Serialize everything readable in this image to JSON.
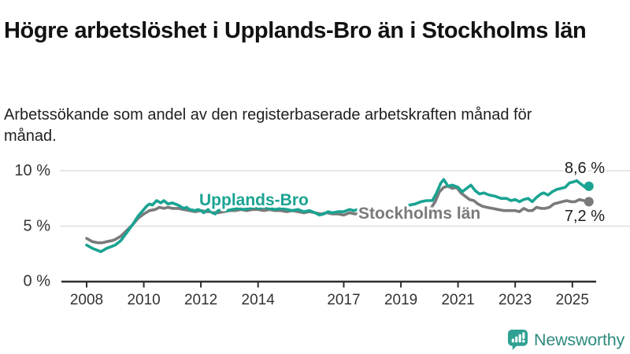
{
  "header": {
    "title": "Högre arbetslöshet i Upplands-Bro än i Stockholms län",
    "subtitle": "Arbetssökande som andel av den registerbaserade arbetskraften månad för månad."
  },
  "footer": {
    "brand": "Newsworthy"
  },
  "colors": {
    "upplands_bro": "#1aa392",
    "stockholms_lan": "#7a7a7a",
    "grid": "#dedede",
    "axis": "#2e2e2e",
    "end_label_text": "#1c1c1c"
  },
  "chart_data": {
    "type": "line",
    "x_range": [
      2008,
      2025.58
    ],
    "ylim": [
      0,
      10
    ],
    "y_unit": "%",
    "grid": "horizontal-only",
    "y_ticks": [
      {
        "label": "10 %",
        "value": 10
      },
      {
        "label": "5 %",
        "value": 5
      },
      {
        "label": "0 %",
        "value": 0
      }
    ],
    "x_ticks": [
      {
        "label": "2008",
        "value": 2008
      },
      {
        "label": "2010",
        "value": 2010
      },
      {
        "label": "2012",
        "value": 2012
      },
      {
        "label": "2014",
        "value": 2014
      },
      {
        "label": "2017",
        "value": 2017
      },
      {
        "label": "2019",
        "value": 2019
      },
      {
        "label": "2021",
        "value": 2021
      },
      {
        "label": "2023",
        "value": 2023
      },
      {
        "label": "2025",
        "value": 2025
      }
    ],
    "series": [
      {
        "name": "Upplands-Bro",
        "color": "#1aa392",
        "end_label": "8,6 %",
        "end_value": 8.6,
        "points": [
          [
            2008.0,
            3.3
          ],
          [
            2008.2,
            3.0
          ],
          [
            2008.4,
            2.8
          ],
          [
            2008.5,
            2.7
          ],
          [
            2008.7,
            3.0
          ],
          [
            2008.9,
            3.2
          ],
          [
            2009.0,
            3.3
          ],
          [
            2009.2,
            3.7
          ],
          [
            2009.4,
            4.4
          ],
          [
            2009.6,
            5.1
          ],
          [
            2009.8,
            5.9
          ],
          [
            2010.0,
            6.5
          ],
          [
            2010.1,
            6.8
          ],
          [
            2010.2,
            7.0
          ],
          [
            2010.3,
            6.9
          ],
          [
            2010.45,
            7.3
          ],
          [
            2010.6,
            7.1
          ],
          [
            2010.7,
            7.3
          ],
          [
            2010.85,
            7.0
          ],
          [
            2011.0,
            7.1
          ],
          [
            2011.2,
            6.9
          ],
          [
            2011.4,
            6.6
          ],
          [
            2011.5,
            6.7
          ],
          [
            2011.6,
            6.5
          ],
          [
            2011.8,
            6.4
          ],
          [
            2011.9,
            6.5
          ],
          [
            2012.0,
            6.4
          ],
          [
            2012.1,
            6.2
          ],
          [
            2012.25,
            6.5
          ],
          [
            2012.4,
            6.2
          ],
          [
            2012.5,
            6.1
          ],
          [
            2012.6,
            6.4
          ],
          [
            2012.75,
            6.5
          ],
          [
            2012.9,
            6.4
          ],
          [
            2013.1,
            6.5
          ],
          [
            2013.3,
            6.6
          ],
          [
            2013.5,
            6.5
          ],
          [
            2013.7,
            6.6
          ],
          [
            2013.9,
            6.7
          ],
          [
            2014.0,
            6.6
          ],
          [
            2014.2,
            6.7
          ],
          [
            2014.4,
            6.6
          ],
          [
            2014.6,
            6.5
          ],
          [
            2014.8,
            6.6
          ],
          [
            2015.0,
            6.5
          ],
          [
            2015.2,
            6.4
          ],
          [
            2015.4,
            6.5
          ],
          [
            2015.6,
            6.3
          ],
          [
            2015.8,
            6.4
          ],
          [
            2016.0,
            6.2
          ],
          [
            2016.15,
            6.0
          ],
          [
            2016.3,
            6.1
          ],
          [
            2016.45,
            6.3
          ],
          [
            2016.6,
            6.2
          ],
          [
            2016.8,
            6.3
          ],
          [
            2017.0,
            6.3
          ],
          [
            2017.2,
            6.5
          ],
          [
            2017.35,
            6.4
          ],
          [
            2017.5,
            6.5
          ],
          [
            2017.7,
            6.3
          ],
          [
            2017.9,
            6.2
          ],
          [
            2018.1,
            6.1
          ],
          [
            2018.3,
            6.0
          ],
          [
            2018.5,
            6.1
          ],
          [
            2018.7,
            6.2
          ],
          [
            2018.9,
            6.3
          ],
          [
            2019.1,
            6.6
          ],
          [
            2019.3,
            6.9
          ],
          [
            2019.5,
            7.0
          ],
          [
            2019.7,
            7.2
          ],
          [
            2019.9,
            7.3
          ],
          [
            2020.1,
            7.3
          ],
          [
            2020.25,
            8.0
          ],
          [
            2020.4,
            8.9
          ],
          [
            2020.5,
            9.2
          ],
          [
            2020.65,
            8.6
          ],
          [
            2020.8,
            8.7
          ],
          [
            2021.0,
            8.5
          ],
          [
            2021.15,
            8.1
          ],
          [
            2021.3,
            8.4
          ],
          [
            2021.45,
            8.7
          ],
          [
            2021.6,
            8.2
          ],
          [
            2021.75,
            7.9
          ],
          [
            2021.9,
            8.0
          ],
          [
            2022.1,
            7.8
          ],
          [
            2022.3,
            7.7
          ],
          [
            2022.5,
            7.5
          ],
          [
            2022.7,
            7.5
          ],
          [
            2022.85,
            7.3
          ],
          [
            2023.0,
            7.4
          ],
          [
            2023.15,
            7.2
          ],
          [
            2023.3,
            7.4
          ],
          [
            2023.45,
            7.5
          ],
          [
            2023.6,
            7.2
          ],
          [
            2023.75,
            7.6
          ],
          [
            2023.9,
            7.9
          ],
          [
            2024.0,
            8.0
          ],
          [
            2024.15,
            7.8
          ],
          [
            2024.3,
            8.1
          ],
          [
            2024.45,
            8.3
          ],
          [
            2024.6,
            8.4
          ],
          [
            2024.75,
            8.5
          ],
          [
            2024.9,
            8.9
          ],
          [
            2025.05,
            9.0
          ],
          [
            2025.15,
            9.1
          ],
          [
            2025.3,
            8.8
          ],
          [
            2025.45,
            8.5
          ],
          [
            2025.58,
            8.6
          ]
        ]
      },
      {
        "name": "Stockholms län",
        "color": "#7a7a7a",
        "end_label": "7,2 %",
        "end_value": 7.2,
        "points": [
          [
            2008.0,
            3.9
          ],
          [
            2008.2,
            3.6
          ],
          [
            2008.4,
            3.5
          ],
          [
            2008.55,
            3.5
          ],
          [
            2008.7,
            3.6
          ],
          [
            2008.9,
            3.7
          ],
          [
            2009.0,
            3.8
          ],
          [
            2009.2,
            4.1
          ],
          [
            2009.4,
            4.6
          ],
          [
            2009.6,
            5.1
          ],
          [
            2009.8,
            5.7
          ],
          [
            2010.0,
            6.1
          ],
          [
            2010.2,
            6.4
          ],
          [
            2010.4,
            6.5
          ],
          [
            2010.55,
            6.7
          ],
          [
            2010.7,
            6.6
          ],
          [
            2010.85,
            6.7
          ],
          [
            2011.0,
            6.6
          ],
          [
            2011.2,
            6.6
          ],
          [
            2011.4,
            6.5
          ],
          [
            2011.6,
            6.4
          ],
          [
            2011.8,
            6.3
          ],
          [
            2012.0,
            6.4
          ],
          [
            2012.2,
            6.3
          ],
          [
            2012.4,
            6.3
          ],
          [
            2012.6,
            6.2
          ],
          [
            2012.8,
            6.3
          ],
          [
            2013.0,
            6.4
          ],
          [
            2013.2,
            6.4
          ],
          [
            2013.4,
            6.5
          ],
          [
            2013.6,
            6.4
          ],
          [
            2013.8,
            6.5
          ],
          [
            2014.0,
            6.5
          ],
          [
            2014.2,
            6.4
          ],
          [
            2014.4,
            6.5
          ],
          [
            2014.6,
            6.4
          ],
          [
            2014.8,
            6.4
          ],
          [
            2015.0,
            6.3
          ],
          [
            2015.2,
            6.4
          ],
          [
            2015.4,
            6.3
          ],
          [
            2015.6,
            6.2
          ],
          [
            2015.8,
            6.3
          ],
          [
            2016.0,
            6.2
          ],
          [
            2016.2,
            6.1
          ],
          [
            2016.4,
            6.2
          ],
          [
            2016.6,
            6.1
          ],
          [
            2016.8,
            6.1
          ],
          [
            2017.0,
            6.0
          ],
          [
            2017.2,
            6.2
          ],
          [
            2017.4,
            6.1
          ],
          [
            2017.6,
            6.1
          ],
          [
            2017.8,
            6.0
          ],
          [
            2018.0,
            5.9
          ],
          [
            2018.2,
            5.9
          ],
          [
            2018.4,
            5.8
          ],
          [
            2018.6,
            5.9
          ],
          [
            2018.8,
            6.0
          ],
          [
            2019.0,
            6.0
          ],
          [
            2019.2,
            6.1
          ],
          [
            2019.4,
            6.2
          ],
          [
            2019.6,
            6.2
          ],
          [
            2019.8,
            6.3
          ],
          [
            2020.0,
            6.4
          ],
          [
            2020.2,
            7.2
          ],
          [
            2020.35,
            8.1
          ],
          [
            2020.5,
            8.5
          ],
          [
            2020.65,
            8.6
          ],
          [
            2020.8,
            8.4
          ],
          [
            2020.95,
            8.5
          ],
          [
            2021.1,
            8.0
          ],
          [
            2021.25,
            7.7
          ],
          [
            2021.4,
            7.4
          ],
          [
            2021.55,
            7.3
          ],
          [
            2021.7,
            7.0
          ],
          [
            2021.85,
            6.8
          ],
          [
            2022.0,
            6.7
          ],
          [
            2022.2,
            6.6
          ],
          [
            2022.4,
            6.5
          ],
          [
            2022.6,
            6.4
          ],
          [
            2022.8,
            6.4
          ],
          [
            2023.0,
            6.4
          ],
          [
            2023.15,
            6.3
          ],
          [
            2023.3,
            6.6
          ],
          [
            2023.45,
            6.4
          ],
          [
            2023.6,
            6.4
          ],
          [
            2023.75,
            6.7
          ],
          [
            2023.9,
            6.6
          ],
          [
            2024.05,
            6.6
          ],
          [
            2024.2,
            6.7
          ],
          [
            2024.35,
            7.0
          ],
          [
            2024.5,
            7.1
          ],
          [
            2024.65,
            7.2
          ],
          [
            2024.8,
            7.3
          ],
          [
            2024.95,
            7.2
          ],
          [
            2025.1,
            7.2
          ],
          [
            2025.25,
            7.4
          ],
          [
            2025.4,
            7.3
          ],
          [
            2025.58,
            7.2
          ]
        ]
      }
    ]
  }
}
